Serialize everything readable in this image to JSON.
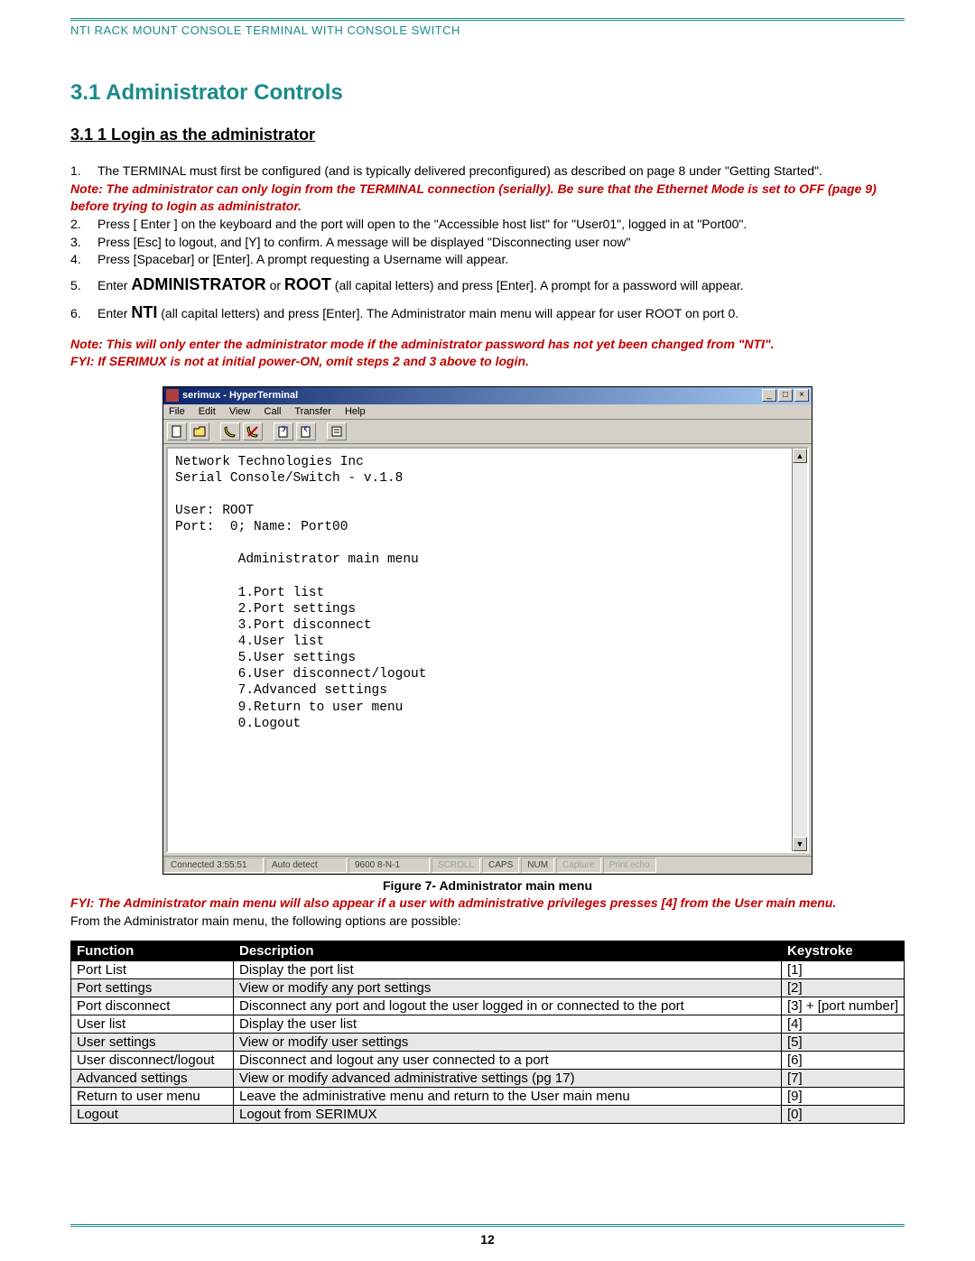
{
  "header": "NTI RACK MOUNT CONSOLE TERMINAL WITH CONSOLE SWITCH",
  "section_title": "3.1  Administrator Controls",
  "subsection_title": "3.1 1 Login as the administrator",
  "steps": {
    "s1": "The TERMINAL must first be configured (and is typically delivered preconfigured) as described on page 8 under \"Getting Started\".",
    "note1": "Note:   The administrator can only login from the TERMINAL connection (serially).   Be sure that the Ethernet Mode is set to OFF (page 9) before trying to login as administrator.",
    "s2": "Press [ Enter ] on the keyboard and the port will open to the \"Accessible host list\" for \"User01\", logged in at \"Port00\".",
    "s3": "Press [Esc] to logout,  and [Y] to confirm.     A message will be displayed \"Disconnecting user now\"",
    "s4": "Press [Spacebar] or [Enter].      A prompt requesting a Username will appear.",
    "s5a": "Enter ",
    "s5b": "ADMINISTRATOR",
    "s5c": " or ",
    "s5d": "ROOT",
    "s5e": " (all capital letters) and press [Enter].    A prompt for a password will appear.",
    "s6a": "Enter ",
    "s6b": "NTI",
    "s6c": " (all capital letters) and press [Enter].    The Administrator main menu will appear for user ROOT on port 0.",
    "note2a": "Note:  This will only enter the administrator mode if the administrator password has not yet been changed from \"NTI\".",
    "note2b": "FYI:  If SERIMUX is not at initial power-ON, omit steps 2 and 3 above to login."
  },
  "hyperterminal": {
    "title": "serimux - HyperTerminal",
    "menus": [
      "File",
      "Edit",
      "View",
      "Call",
      "Transfer",
      "Help"
    ],
    "terminal_text": "Network Technologies Inc\nSerial Console/Switch - v.1.8\n\nUser: ROOT\nPort:  0; Name: Port00\n\n        Administrator main menu\n\n        1.Port list\n        2.Port settings\n        3.Port disconnect\n        4.User list\n        5.User settings\n        6.User disconnect/logout\n        7.Advanced settings\n        9.Return to user menu\n        0.Logout",
    "status": {
      "connected": "Connected 3:55:51",
      "detect": "Auto detect",
      "baud": "9600 8-N-1",
      "scroll": "SCROLL",
      "caps": "CAPS",
      "num": "NUM",
      "capture": "Capture",
      "echo": "Print echo"
    }
  },
  "figure_caption": "Figure 7- Administrator main menu",
  "fyi_figure": "FYI: The Administrator main menu will also appear if a user with administrative privileges presses [4] from the User main menu.",
  "post_figure_text": "From the Administrator main menu, the following options are possible:",
  "table": {
    "headers": {
      "func": "Function",
      "desc": "Description",
      "key": "Keystroke"
    },
    "rows": [
      {
        "func": "Port List",
        "desc": "Display the port list",
        "key": "[1]",
        "shade": false
      },
      {
        "func": "Port settings",
        "desc": "View or modify any port settings",
        "key": "[2]",
        "shade": true
      },
      {
        "func": "Port disconnect",
        "desc": "Disconnect any port and logout the user logged in or connected to the port",
        "key": "[3] + [port number]",
        "shade": false
      },
      {
        "func": "User list",
        "desc": "Display the user list",
        "key": "[4]",
        "shade": false
      },
      {
        "func": "User settings",
        "desc": "View or modify user settings",
        "key": "[5]",
        "shade": true
      },
      {
        "func": "User disconnect/logout",
        "desc": "Disconnect and logout any user connected to a port",
        "key": "[6]",
        "shade": false
      },
      {
        "func": "Advanced settings",
        "desc": "View or modify advanced administrative settings (pg 17)",
        "key": "[7]",
        "shade": true
      },
      {
        "func": "Return to user menu",
        "desc": "Leave the administrative menu and return to the User main menu",
        "key": "[9]",
        "shade": false
      },
      {
        "func": "Logout",
        "desc": "Logout from SERIMUX",
        "key": "[0]",
        "shade": true
      }
    ]
  },
  "page_number": "12",
  "colors": {
    "teal": "#1a8a8a",
    "red": "#c00000",
    "black": "#000000",
    "shade": "#e8e8e8"
  }
}
